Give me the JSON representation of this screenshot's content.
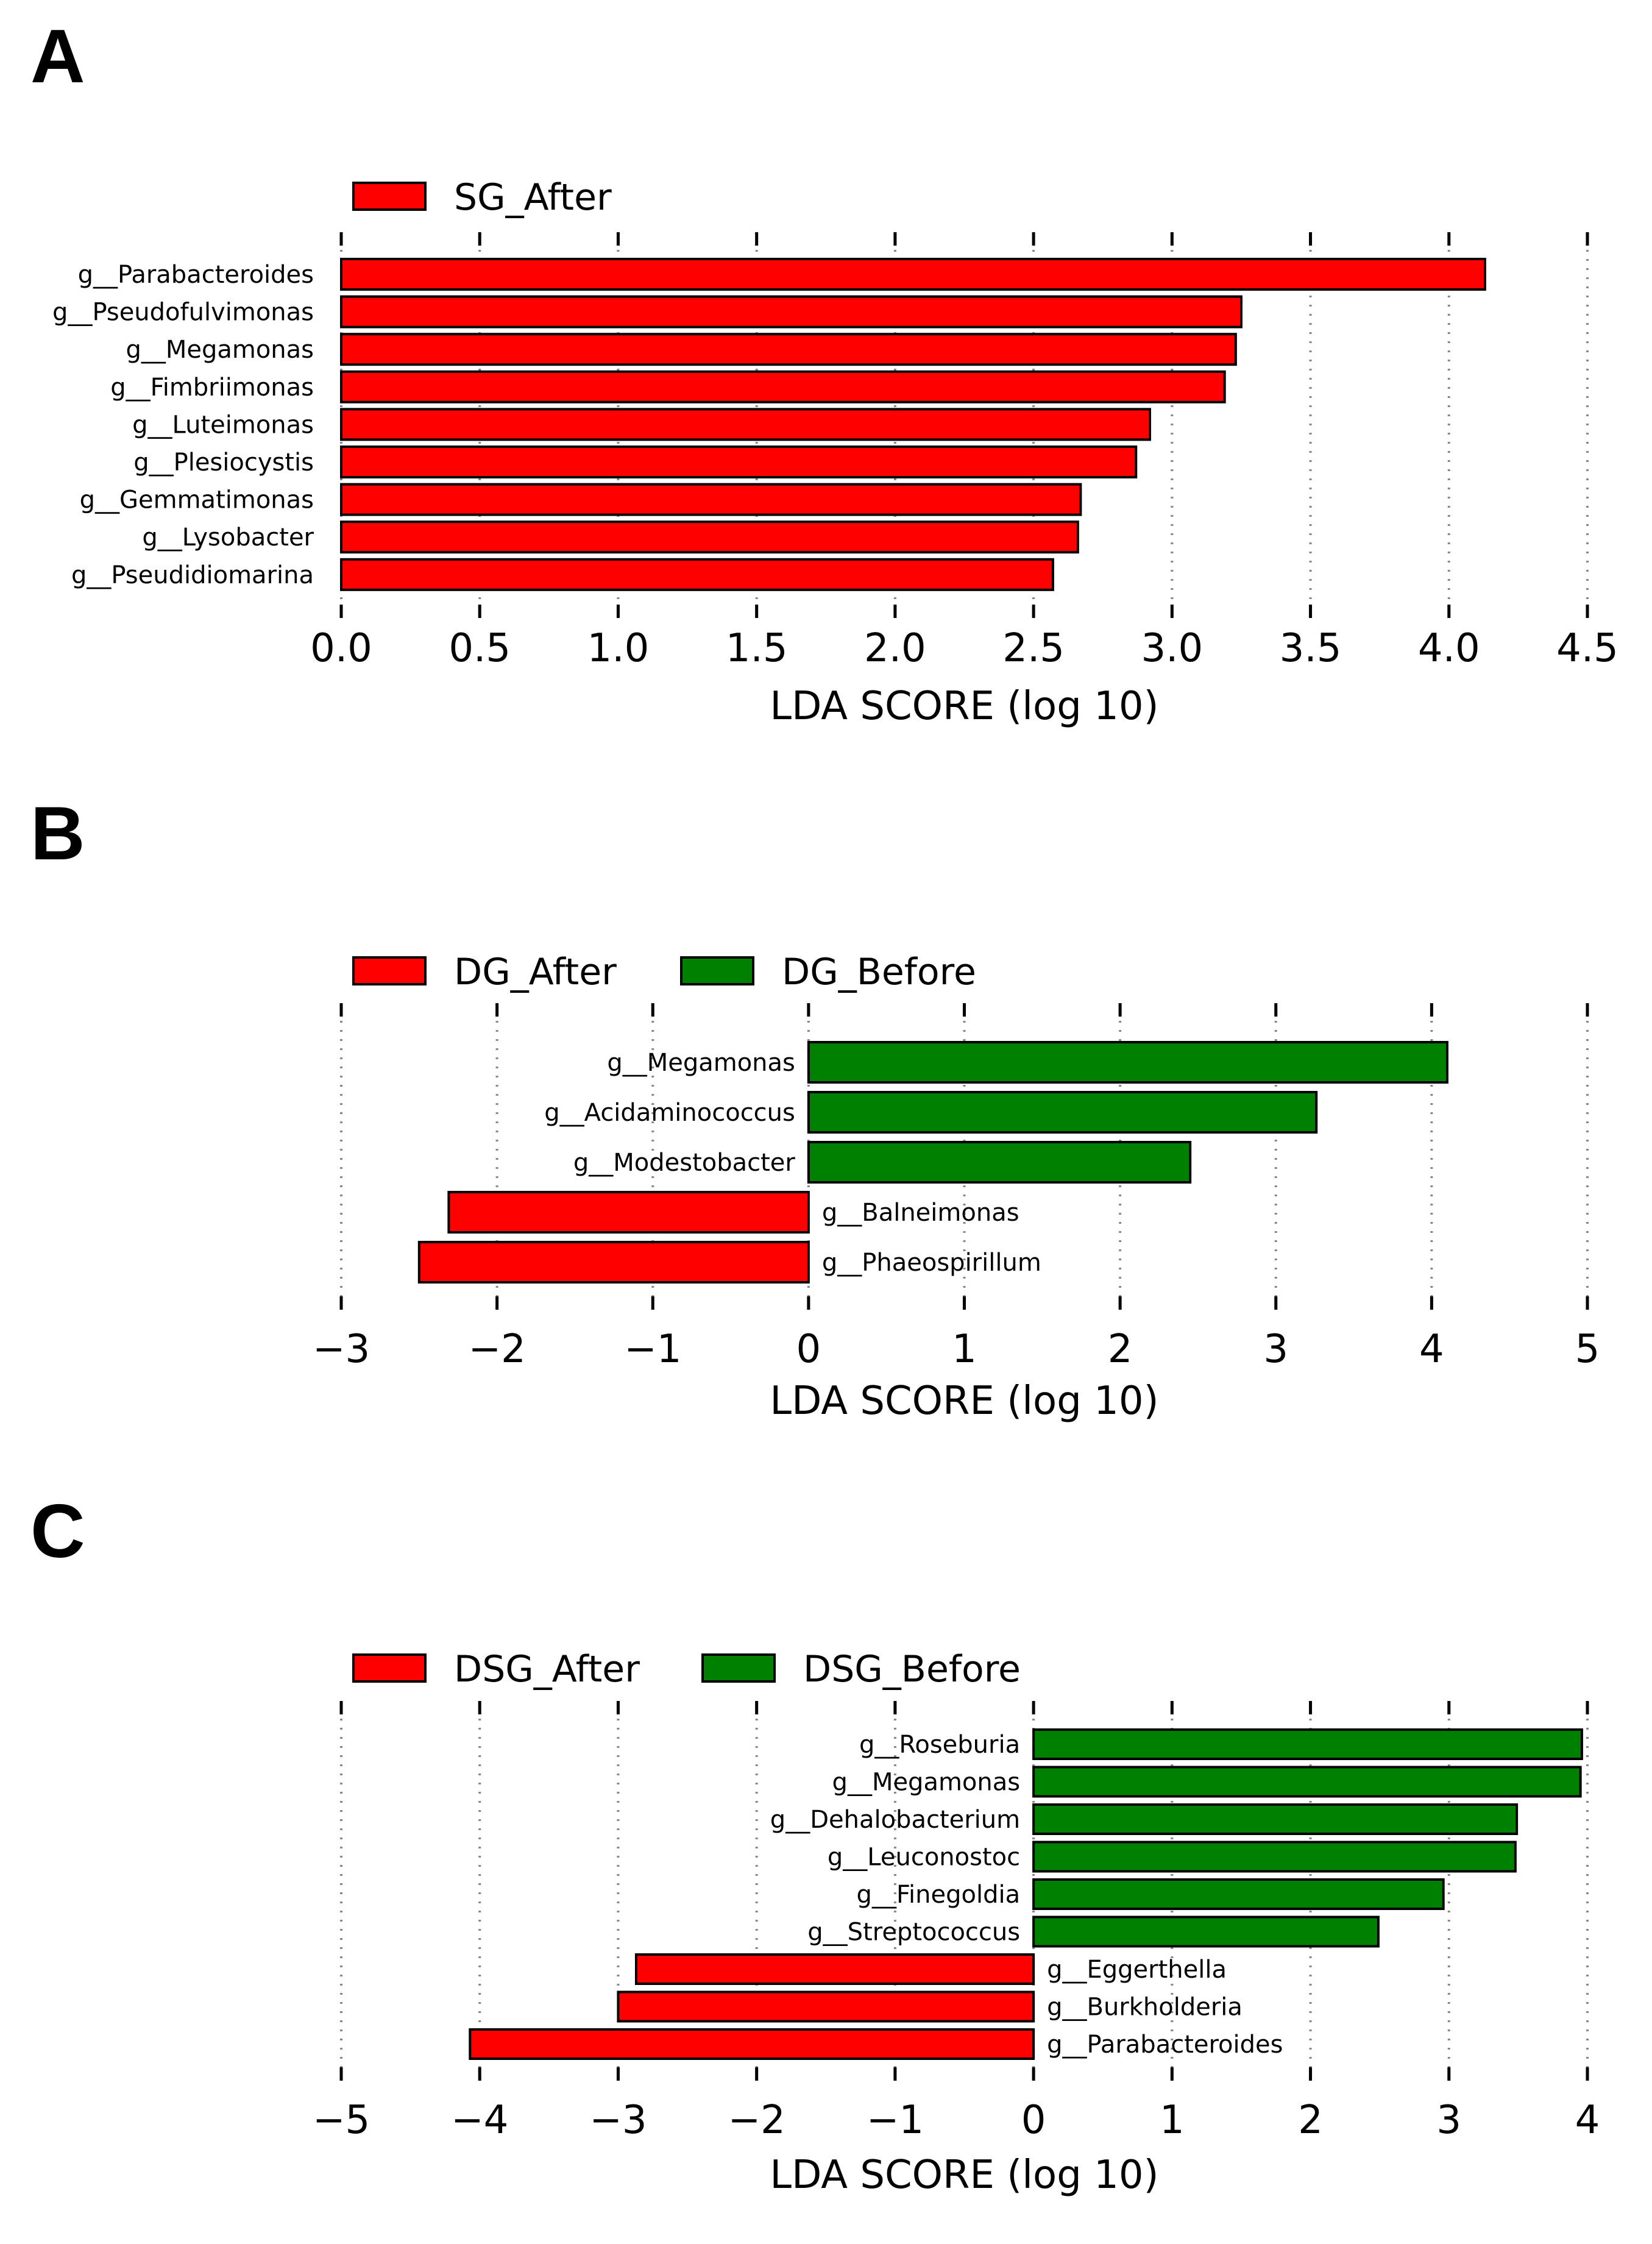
{
  "colors": {
    "after": "#ff0000",
    "before": "#008000"
  },
  "chart_data": [
    {
      "panel": "A",
      "type": "bar",
      "orientation": "horizontal",
      "legend": [
        {
          "label": "SG_After",
          "color": "#ff0000"
        }
      ],
      "xlabel": "LDA SCORE (log 10)",
      "xlim": [
        0,
        4.5
      ],
      "ticks": [
        0,
        0.5,
        1,
        1.5,
        2,
        2.5,
        3,
        3.5,
        4,
        4.5
      ],
      "tick_labels": [
        "0.0",
        "0.5",
        "1.0",
        "1.5",
        "2.0",
        "2.5",
        "3.0",
        "3.5",
        "4.0",
        "4.5"
      ],
      "categories": [
        "g__Parabacteroides",
        "g__Pseudofulvimonas",
        "g__Megamonas",
        "g__Fimbriimonas",
        "g__Luteimonas",
        "g__Plesiocystis",
        "g__Gemmatimonas",
        "g__Lysobacter",
        "g__Pseudidiomarina"
      ],
      "values": [
        4.13,
        3.25,
        3.23,
        3.19,
        2.92,
        2.87,
        2.67,
        2.66,
        2.57
      ],
      "groups": [
        "SG_After",
        "SG_After",
        "SG_After",
        "SG_After",
        "SG_After",
        "SG_After",
        "SG_After",
        "SG_After",
        "SG_After"
      ]
    },
    {
      "panel": "B",
      "type": "bar",
      "orientation": "horizontal",
      "legend": [
        {
          "label": "DG_After",
          "color": "#ff0000"
        },
        {
          "label": "DG_Before",
          "color": "#008000"
        }
      ],
      "xlabel": "LDA SCORE (log 10)",
      "xlim": [
        -3,
        5
      ],
      "ticks": [
        -3,
        -2,
        -1,
        0,
        1,
        2,
        3,
        4,
        5
      ],
      "tick_labels": [
        "−3",
        "−2",
        "−1",
        "0",
        "1",
        "2",
        "3",
        "4",
        "5"
      ],
      "categories": [
        "g__Megamonas",
        "g__Acidaminococcus",
        "g__Modestobacter",
        "g__Balneimonas",
        "g__Phaeospirillum"
      ],
      "values": [
        4.1,
        3.26,
        2.45,
        -2.31,
        -2.5
      ],
      "groups": [
        "DG_Before",
        "DG_Before",
        "DG_Before",
        "DG_After",
        "DG_After"
      ]
    },
    {
      "panel": "C",
      "type": "bar",
      "orientation": "horizontal",
      "legend": [
        {
          "label": "DSG_After",
          "color": "#ff0000"
        },
        {
          "label": "DSG_Before",
          "color": "#008000"
        }
      ],
      "xlabel": "LDA SCORE (log 10)",
      "xlim": [
        -5,
        4
      ],
      "ticks": [
        -5,
        -4,
        -3,
        -2,
        -1,
        0,
        1,
        2,
        3,
        4
      ],
      "tick_labels": [
        "−5",
        "−4",
        "−3",
        "−2",
        "−1",
        "0",
        "1",
        "2",
        "3",
        "4"
      ],
      "categories": [
        "g__Roseburia",
        "g__Megamonas",
        "g__Dehalobacterium",
        "g__Leuconostoc",
        "g__Finegoldia",
        "g__Streptococcus",
        "g__Eggerthella",
        "g__Burkholderia",
        "g__Parabacteroides"
      ],
      "values": [
        3.96,
        3.95,
        3.49,
        3.48,
        2.96,
        2.49,
        -2.87,
        -3.0,
        -4.07
      ],
      "groups": [
        "DSG_Before",
        "DSG_Before",
        "DSG_Before",
        "DSG_Before",
        "DSG_Before",
        "DSG_Before",
        "DSG_After",
        "DSG_After",
        "DSG_After"
      ]
    }
  ]
}
